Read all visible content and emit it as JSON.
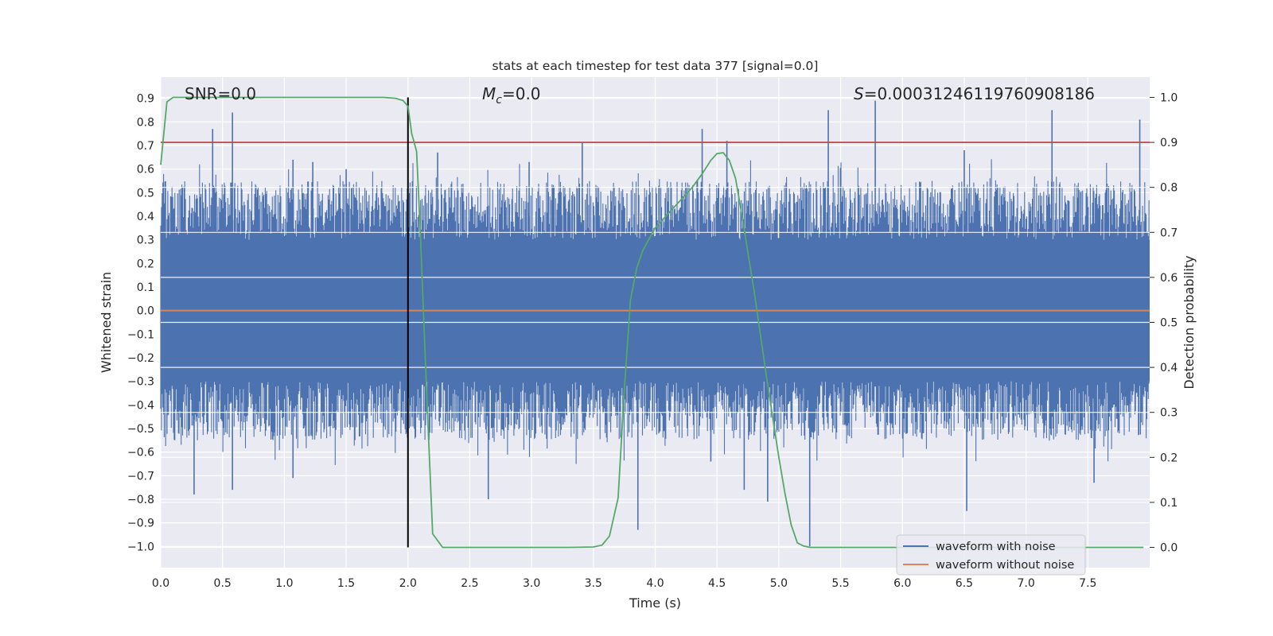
{
  "chart_data": {
    "type": "line",
    "title": "stats at each timestep for test data 377 [signal=0.0]",
    "xlabel": "Time (s)",
    "ylabel_left": "Whitened strain",
    "ylabel_right": "Detection probability",
    "xlim": [
      0.0,
      8.0
    ],
    "ylim_left": [
      -1.09,
      0.99
    ],
    "ylim_right": [
      -0.045,
      1.045
    ],
    "x_ticks": [
      "0.0",
      "0.5",
      "1.0",
      "1.5",
      "2.0",
      "2.5",
      "3.0",
      "3.5",
      "4.0",
      "4.5",
      "5.0",
      "5.5",
      "6.0",
      "6.5",
      "7.0",
      "7.5"
    ],
    "y_left_ticks": [
      "0.9",
      "0.8",
      "0.7",
      "0.6",
      "0.5",
      "0.4",
      "0.3",
      "0.2",
      "0.1",
      "0.0",
      "−0.1",
      "−0.2",
      "−0.3",
      "−0.4",
      "−0.5",
      "−0.6",
      "−0.7",
      "−0.8",
      "−0.9",
      "−1.0"
    ],
    "y_right_ticks": [
      "1.0",
      "0.9",
      "0.8",
      "0.7",
      "0.6",
      "0.5",
      "0.4",
      "0.3",
      "0.2",
      "0.1",
      "0.0"
    ],
    "annotations": {
      "snr": "SNR=0.0",
      "mc_sym": "M",
      "mc_sub": "c",
      "mc_val": "=0.0",
      "s_sym": "S",
      "s_val": "=0.00031246119760908186"
    },
    "threshold_right": 0.9,
    "event_time": 2.0,
    "noise_band": {
      "envelope": 0.55,
      "dense_band": 0.3
    },
    "series": [
      {
        "name": "waveform with noise",
        "color": "#4c72b0",
        "spike_peaks": [
          [
            0.42,
            0.77
          ],
          [
            0.58,
            0.84
          ],
          [
            1.07,
            0.64
          ],
          [
            1.23,
            0.63
          ],
          [
            1.5,
            0.6
          ],
          [
            2.24,
            0.67
          ],
          [
            2.98,
            0.63
          ],
          [
            3.41,
            0.71
          ],
          [
            4.38,
            0.77
          ],
          [
            4.58,
            0.72
          ],
          [
            5.4,
            0.85
          ],
          [
            5.78,
            0.89
          ],
          [
            6.5,
            0.68
          ],
          [
            7.21,
            0.85
          ],
          [
            7.92,
            0.81
          ]
        ],
        "spike_troughs": [
          [
            0.27,
            -0.78
          ],
          [
            0.58,
            -0.76
          ],
          [
            1.07,
            -0.71
          ],
          [
            2.65,
            -0.8
          ],
          [
            3.86,
            -0.93
          ],
          [
            4.45,
            -0.64
          ],
          [
            4.72,
            -0.76
          ],
          [
            4.91,
            -0.81
          ],
          [
            5.25,
            -1.0
          ],
          [
            6.52,
            -0.85
          ],
          [
            7.55,
            -0.73
          ]
        ]
      },
      {
        "name": "waveform without noise",
        "color": "#dd8452",
        "axis": "left",
        "constant": 0.0
      },
      {
        "name": "detection probability",
        "color": "#55a868",
        "axis": "right",
        "x": [
          0.0,
          0.05,
          0.1,
          0.2,
          0.5,
          1.0,
          1.5,
          1.8,
          1.9,
          1.96,
          2.0,
          2.03,
          2.07,
          2.1,
          2.15,
          2.2,
          2.28,
          2.5,
          3.0,
          3.3,
          3.5,
          3.57,
          3.63,
          3.7,
          3.75,
          3.8,
          3.85,
          3.9,
          4.0,
          4.1,
          4.2,
          4.3,
          4.38,
          4.45,
          4.5,
          4.55,
          4.6,
          4.65,
          4.7,
          4.8,
          4.9,
          5.0,
          5.05,
          5.1,
          5.15,
          5.2,
          5.25,
          5.35,
          5.5,
          6.0,
          7.0,
          7.95
        ],
        "values": [
          0.85,
          0.99,
          1.0,
          1.0,
          1.0,
          1.0,
          1.0,
          1.0,
          0.998,
          0.993,
          0.98,
          0.92,
          0.88,
          0.7,
          0.35,
          0.03,
          0.0,
          0.0,
          0.0,
          0.0,
          0.001,
          0.005,
          0.025,
          0.11,
          0.35,
          0.55,
          0.62,
          0.66,
          0.71,
          0.74,
          0.77,
          0.8,
          0.83,
          0.86,
          0.875,
          0.877,
          0.86,
          0.82,
          0.74,
          0.57,
          0.38,
          0.2,
          0.12,
          0.05,
          0.01,
          0.003,
          0.0,
          0.0,
          0.0,
          0.0,
          0.0,
          0.0
        ]
      },
      {
        "name": "threshold",
        "color": "#c44e52",
        "axis": "right",
        "constant": 0.9
      }
    ],
    "legend": {
      "position": "lower-right",
      "entries": [
        {
          "label": "waveform with noise",
          "color": "#4c72b0"
        },
        {
          "label": "waveform without noise",
          "color": "#dd8452"
        }
      ]
    },
    "grid": true
  }
}
